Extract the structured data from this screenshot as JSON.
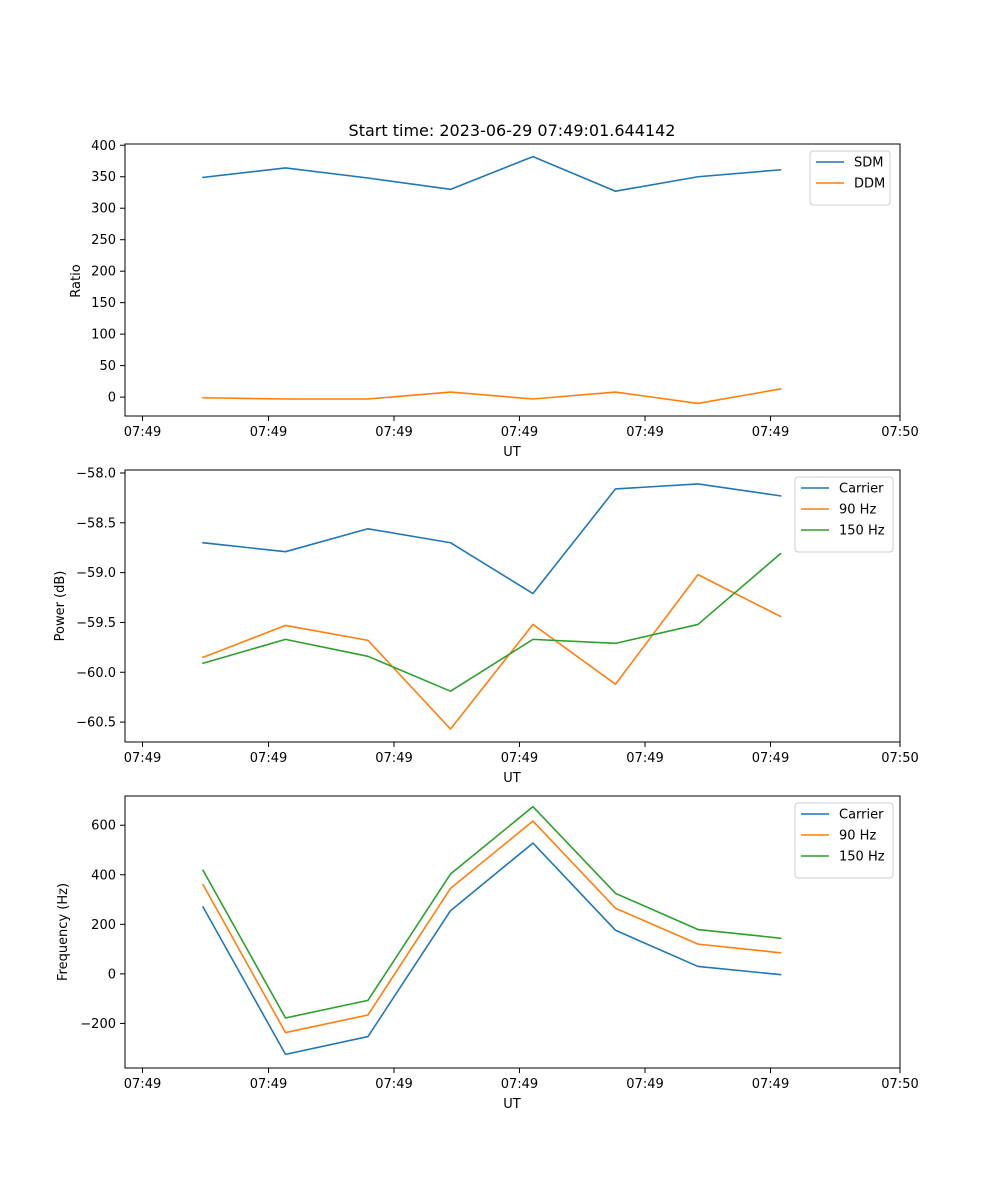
{
  "chart_data": [
    {
      "type": "line",
      "title": "Start time: 2023-06-29 07:49:01.644142",
      "xlabel": "UT",
      "ylabel": "Ratio",
      "x_tick_labels": [
        "07:49",
        "07:49",
        "07:49",
        "07:49",
        "07:49",
        "07:49",
        "07:50"
      ],
      "y_ticks": [
        0,
        50,
        100,
        150,
        200,
        250,
        300,
        350,
        400
      ],
      "y_tick_labels": [
        "0",
        "50",
        "100",
        "150",
        "200",
        "250",
        "300",
        "350",
        "400"
      ],
      "ylim": [
        -30,
        402
      ],
      "legend_position": "top-right",
      "series": [
        {
          "name": "SDM",
          "color": "#1f77b4",
          "values": [
            349,
            364,
            348,
            330,
            382,
            327,
            350,
            361
          ]
        },
        {
          "name": "DDM",
          "color": "#ff7f0e",
          "values": [
            -1,
            -3,
            -3,
            8,
            -3,
            8,
            -10,
            13
          ]
        }
      ]
    },
    {
      "type": "line",
      "title": "",
      "xlabel": "UT",
      "ylabel": "Power (dB)",
      "x_tick_labels": [
        "07:49",
        "07:49",
        "07:49",
        "07:49",
        "07:49",
        "07:49",
        "07:50"
      ],
      "y_ticks": [
        -58.0,
        -58.5,
        -59.0,
        -59.5,
        -60.0,
        -60.5
      ],
      "y_tick_labels": [
        "−58.0",
        "−58.5",
        "−59.0",
        "−59.5",
        "−60.0",
        "−60.5"
      ],
      "ylim": [
        -60.7,
        -57.97
      ],
      "legend_position": "top-right",
      "series": [
        {
          "name": "Carrier",
          "color": "#1f77b4",
          "values": [
            -58.7,
            -58.79,
            -58.56,
            -58.7,
            -59.21,
            -58.16,
            -58.11,
            -58.23
          ]
        },
        {
          "name": "90 Hz",
          "color": "#ff7f0e",
          "values": [
            -59.85,
            -59.53,
            -59.68,
            -60.57,
            -59.52,
            -60.12,
            -59.02,
            -59.44
          ]
        },
        {
          "name": "150 Hz",
          "color": "#2ca02c",
          "values": [
            -59.91,
            -59.67,
            -59.84,
            -60.19,
            -59.67,
            -59.71,
            -59.52,
            -58.81
          ]
        }
      ]
    },
    {
      "type": "line",
      "title": "",
      "xlabel": "UT",
      "ylabel": "Frequency (Hz)",
      "x_tick_labels": [
        "07:49",
        "07:49",
        "07:49",
        "07:49",
        "07:49",
        "07:49",
        "07:50"
      ],
      "y_ticks": [
        -200,
        0,
        200,
        400,
        600
      ],
      "y_tick_labels": [
        "−200",
        "0",
        "200",
        "400",
        "600"
      ],
      "ylim": [
        -380,
        718
      ],
      "legend_position": "top-right",
      "series": [
        {
          "name": "Carrier",
          "color": "#1f77b4",
          "values": [
            270,
            -325,
            -253,
            255,
            528,
            176,
            30,
            -3
          ]
        },
        {
          "name": "90 Hz",
          "color": "#ff7f0e",
          "values": [
            360,
            -237,
            -166,
            345,
            617,
            265,
            120,
            85
          ]
        },
        {
          "name": "150 Hz",
          "color": "#2ca02c",
          "values": [
            418,
            -178,
            -107,
            403,
            675,
            325,
            179,
            144
          ]
        }
      ]
    }
  ]
}
